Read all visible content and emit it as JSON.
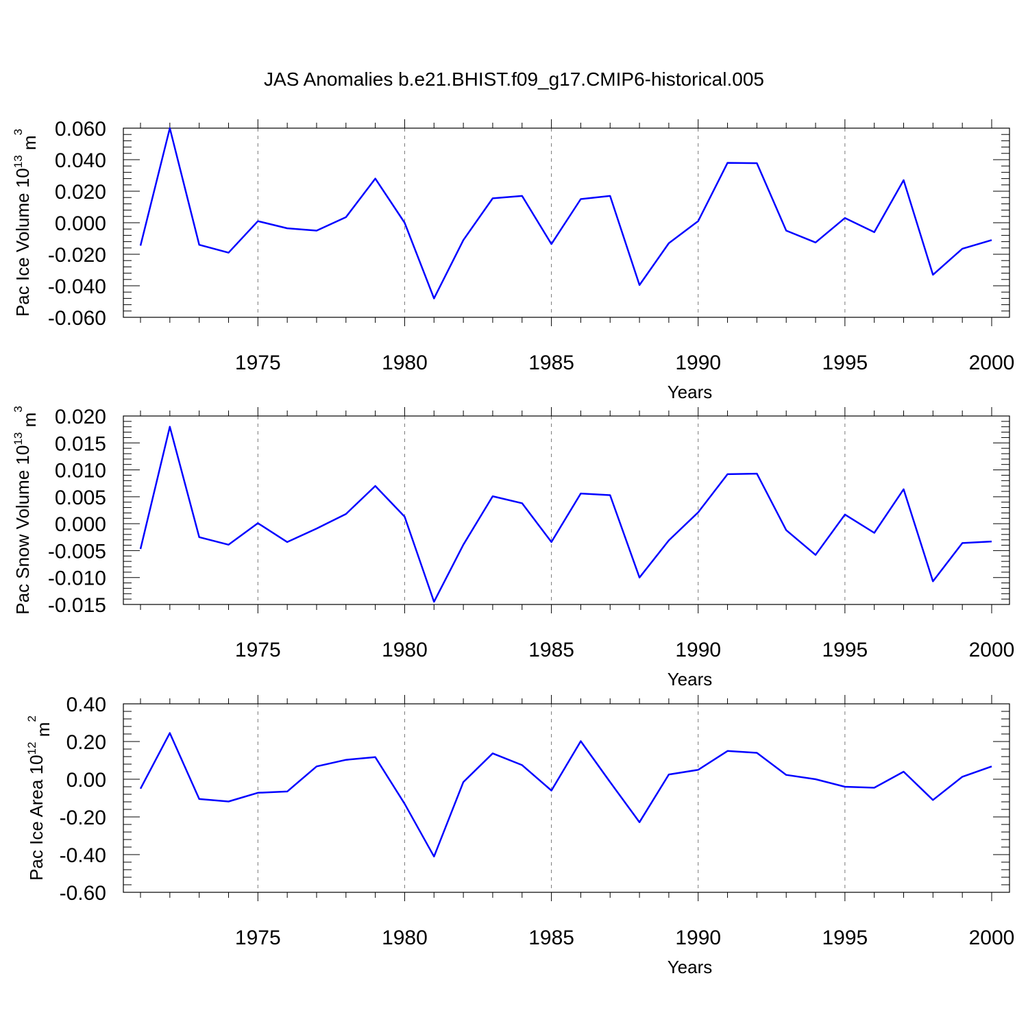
{
  "figure": {
    "title": "JAS Anomalies b.e21.BHIST.f09_g17.CMIP6-historical.005",
    "line_color": "#0000ff",
    "grid_color": "#777777"
  },
  "chart_data": [
    {
      "type": "line",
      "ylabel_text": "Pac Ice Volume 10",
      "ylabel_exp": "13",
      "ylabel_unit": " m",
      "ylabel_unit_exp": "3",
      "xlabel": "Years",
      "x_ticks": [
        "1975",
        "1980",
        "1985",
        "1990",
        "1995",
        "2000"
      ],
      "y_ticks": [
        "0.060",
        "0.040",
        "0.020",
        "0.000",
        "-0.020",
        "-0.040",
        "-0.060"
      ],
      "xlim": [
        1971,
        2001
      ],
      "ylim": [
        -0.06,
        0.06
      ],
      "grid": "vertical dashed at major x ticks",
      "series": [
        {
          "x": [
            1971,
            1972,
            1973,
            1974,
            1975,
            1976,
            1977,
            1978,
            1979,
            1980,
            1981,
            1982,
            1983,
            1984,
            1985,
            1986,
            1987,
            1988,
            1989,
            1990,
            1991,
            1992,
            1993,
            1994,
            1995,
            1996,
            1997,
            1998,
            1999,
            2000
          ],
          "values": [
            -0.0145,
            0.06,
            -0.014,
            -0.019,
            0.001,
            -0.0035,
            -0.005,
            0.0035,
            0.028,
            0.0,
            -0.048,
            -0.011,
            0.0155,
            0.017,
            -0.0135,
            0.015,
            0.017,
            -0.0395,
            -0.013,
            0.001,
            0.038,
            0.0378,
            -0.005,
            -0.0125,
            0.003,
            -0.006,
            0.027,
            -0.033,
            -0.0165,
            -0.011
          ]
        }
      ]
    },
    {
      "type": "line",
      "ylabel_text": "Pac Snow Volume 10",
      "ylabel_exp": "13",
      "ylabel_unit": " m",
      "ylabel_unit_exp": "3",
      "xlabel": "Years",
      "x_ticks": [
        "1975",
        "1980",
        "1985",
        "1990",
        "1995",
        "2000"
      ],
      "y_ticks": [
        "0.020",
        "0.015",
        "0.010",
        "0.005",
        "0.000",
        "-0.005",
        "-0.010",
        "-0.015"
      ],
      "xlim": [
        1971,
        2001
      ],
      "ylim": [
        -0.015,
        0.02
      ],
      "grid": "vertical dashed at major x ticks",
      "series": [
        {
          "x": [
            1971,
            1972,
            1973,
            1974,
            1975,
            1976,
            1977,
            1978,
            1979,
            1980,
            1981,
            1982,
            1983,
            1984,
            1985,
            1986,
            1987,
            1988,
            1989,
            1990,
            1991,
            1992,
            1993,
            1994,
            1995,
            1996,
            1997,
            1998,
            1999,
            2000
          ],
          "values": [
            -0.0047,
            0.018,
            -0.0025,
            -0.0039,
            0.0001,
            -0.0034,
            -0.0009,
            0.0018,
            0.007,
            0.0013,
            -0.0145,
            -0.0039,
            0.0051,
            0.0038,
            -0.0034,
            0.0056,
            0.0053,
            -0.01,
            -0.0031,
            0.0021,
            0.0092,
            0.0093,
            -0.0012,
            -0.0058,
            0.0017,
            -0.0017,
            0.0064,
            -0.0107,
            -0.0036,
            -0.0033
          ]
        }
      ]
    },
    {
      "type": "line",
      "ylabel_text": "Pac Ice Area 10",
      "ylabel_exp": "12",
      "ylabel_unit": " m",
      "ylabel_unit_exp": "2",
      "xlabel": "Years",
      "x_ticks": [
        "1975",
        "1980",
        "1985",
        "1990",
        "1995",
        "2000"
      ],
      "y_ticks": [
        "0.40",
        "0.20",
        "0.00",
        "-0.20",
        "-0.40",
        "-0.60"
      ],
      "xlim": [
        1971,
        2001
      ],
      "ylim": [
        -0.6,
        0.4
      ],
      "grid": "vertical dashed at major x ticks",
      "series": [
        {
          "x": [
            1971,
            1972,
            1973,
            1974,
            1975,
            1976,
            1977,
            1978,
            1979,
            1980,
            1981,
            1982,
            1983,
            1984,
            1985,
            1986,
            1987,
            1988,
            1989,
            1990,
            1991,
            1992,
            1993,
            1994,
            1995,
            1996,
            1997,
            1998,
            1999,
            2000
          ],
          "values": [
            -0.05,
            0.245,
            -0.105,
            -0.118,
            -0.072,
            -0.065,
            0.068,
            0.103,
            0.117,
            -0.13,
            -0.41,
            -0.015,
            0.137,
            0.075,
            -0.06,
            0.202,
            -0.015,
            -0.228,
            0.025,
            0.05,
            0.15,
            0.14,
            0.023,
            0.0,
            -0.04,
            -0.045,
            0.04,
            -0.11,
            0.013,
            0.068
          ]
        }
      ]
    }
  ]
}
